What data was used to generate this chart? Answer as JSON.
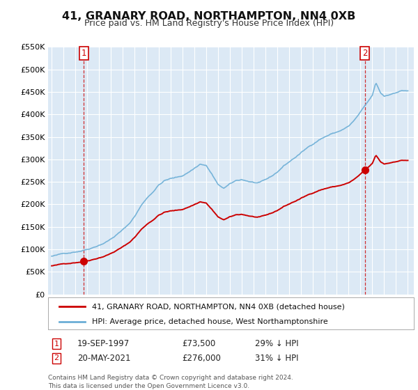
{
  "title": "41, GRANARY ROAD, NORTHAMPTON, NN4 0XB",
  "subtitle": "Price paid vs. HM Land Registry's House Price Index (HPI)",
  "legend_line1": "41, GRANARY ROAD, NORTHAMPTON, NN4 0XB (detached house)",
  "legend_line2": "HPI: Average price, detached house, West Northamptonshire",
  "annotation1_date": "19-SEP-1997",
  "annotation1_price": "£73,500",
  "annotation1_hpi": "29% ↓ HPI",
  "annotation2_date": "20-MAY-2021",
  "annotation2_price": "£276,000",
  "annotation2_hpi": "31% ↓ HPI",
  "footer": "Contains HM Land Registry data © Crown copyright and database right 2024.\nThis data is licensed under the Open Government Licence v3.0.",
  "red_color": "#cc0000",
  "blue_color": "#6baed6",
  "dot_color": "#cc0000",
  "ylim": [
    0,
    550000
  ],
  "yticks": [
    0,
    50000,
    100000,
    150000,
    200000,
    250000,
    300000,
    350000,
    400000,
    450000,
    500000,
    550000
  ],
  "background_color": "#ffffff",
  "plot_bg_color": "#dce9f5",
  "grid_color": "#ffffff",
  "sale1_x": 1997.72,
  "sale1_y": 73500,
  "sale2_x": 2021.38,
  "sale2_y": 276000,
  "xlim_left": 1994.7,
  "xlim_right": 2025.5
}
